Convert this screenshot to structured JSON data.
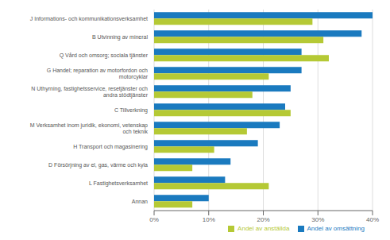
{
  "chart_data": {
    "type": "bar",
    "orientation": "horizontal",
    "categories": [
      "J Informations- och kommunikationsverksamhet",
      "B Utvinning av mineral",
      "Q Vård och omsorg; sociala tjänster",
      "G Handel; reparation av motorfordon och\nmotorcyklar",
      "N Uthyrning, fastighetsservice, resetjänster och\nandra stödtjänster",
      "C Tillverkning",
      "M Verksamhet inom juridik, ekonomi, vetenskap\noch teknik",
      "H Transport och magasinering",
      "D Försörjning av el, gas, värme och kyla",
      "L Fastighetsverksamhet",
      "Annan"
    ],
    "series": [
      {
        "name": "Andel av omsättning",
        "color": "#1a7abf",
        "values": [
          40,
          38,
          27,
          27,
          25,
          24,
          23,
          19,
          14,
          13,
          10
        ]
      },
      {
        "name": "Andel av anställda",
        "color": "#b5c935",
        "values": [
          29,
          31,
          32,
          21,
          18,
          25,
          17,
          11,
          7,
          21,
          7
        ]
      }
    ],
    "xlim": [
      0,
      40
    ],
    "xticks": [
      {
        "value": 0,
        "label": "0%"
      },
      {
        "value": 10,
        "label": "10%"
      },
      {
        "value": 20,
        "label": "20%"
      },
      {
        "value": 30,
        "label": "30%"
      },
      {
        "value": 40,
        "label": "40%"
      }
    ],
    "grid": true,
    "legend": "lower right"
  }
}
